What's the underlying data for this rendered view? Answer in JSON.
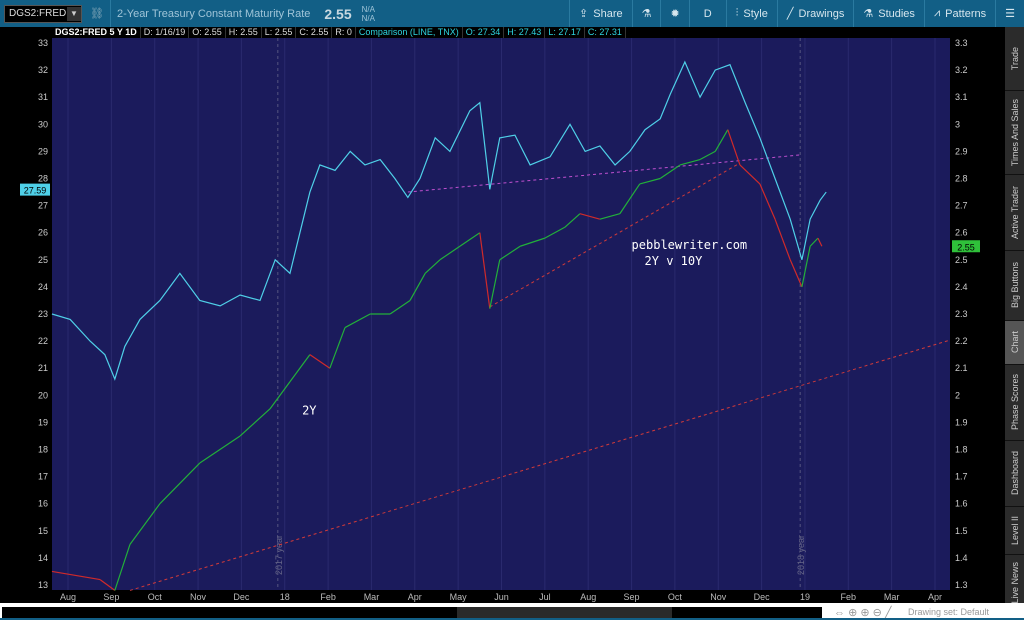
{
  "toolbar": {
    "symbol": "DGS2:FRED",
    "description": "2-Year Treasury Constant Maturity Rate",
    "last": "2.55",
    "na1": "N/A",
    "na2": "N/A",
    "share": "Share",
    "aggregation": "D",
    "style": "Style",
    "drawings": "Drawings",
    "studies": "Studies",
    "patterns": "Patterns"
  },
  "info": {
    "title": "DGS2:FRED 5 Y 1D",
    "date": "D: 1/16/19",
    "open": "O: 2.55",
    "high": "H: 2.55",
    "low": "L: 2.55",
    "close": "C: 2.55",
    "range": "R: 0",
    "comparison": "Comparison (LINE, TNX)",
    "c_open": "O: 27.34",
    "c_high": "H: 27.43",
    "c_low": "L: 27.17",
    "c_close": "C: 27.31"
  },
  "sidebar": [
    "Trade",
    "Times And Sales",
    "Active Trader",
    "Big Buttons",
    "Chart",
    "Phase Scores",
    "Dashboard",
    "Level II",
    "Live News"
  ],
  "bottom": {
    "drawing_set": "Drawing set: Default"
  },
  "chart_data": {
    "type": "line",
    "x_unit": "months since Aug 2017",
    "x_ticks": [
      "Aug",
      "Sep",
      "Oct",
      "Nov",
      "Dec",
      "18",
      "Feb",
      "Mar",
      "Apr",
      "May",
      "Jun",
      "Jul",
      "Aug",
      "Sep",
      "Oct",
      "Nov",
      "Dec",
      "19",
      "Feb",
      "Mar",
      "Apr"
    ],
    "left_axis": {
      "range": [
        13,
        33
      ],
      "ticks": [
        "13",
        "14",
        "15",
        "16",
        "17",
        "18",
        "19",
        "20",
        "21",
        "22",
        "23",
        "24",
        "25",
        "26",
        "27",
        "28",
        "29",
        "30",
        "31",
        "32",
        "33"
      ]
    },
    "right_axis": {
      "range": [
        1.3,
        3.3
      ],
      "ticks": [
        "1.3",
        "1.4",
        "1.5",
        "1.6",
        "1.7",
        "1.8",
        "1.9",
        "2",
        "2.1",
        "2.2",
        "2.3",
        "2.4",
        "2.5",
        "2.6",
        "2.7",
        "2.8",
        "2.9",
        "3",
        "3.1",
        "3.2",
        "3.3"
      ]
    },
    "left_badge": "27.59",
    "right_badge": "2.55",
    "series": [
      {
        "name": "TNX (comparison, left axis)",
        "color": "#4fd0e8",
        "axis": "left",
        "points": [
          [
            -0.37,
            23
          ],
          [
            0.05,
            22.8
          ],
          [
            0.51,
            22
          ],
          [
            0.85,
            21.5
          ],
          [
            1.08,
            20.6
          ],
          [
            1.31,
            21.8
          ],
          [
            1.66,
            22.8
          ],
          [
            2.12,
            23.5
          ],
          [
            2.58,
            24.5
          ],
          [
            3.04,
            23.5
          ],
          [
            3.51,
            23.3
          ],
          [
            3.97,
            23.7
          ],
          [
            4.43,
            23.5
          ],
          [
            4.78,
            25
          ],
          [
            5.12,
            24.5
          ],
          [
            5.35,
            26
          ],
          [
            5.58,
            27.5
          ],
          [
            5.81,
            28.5
          ],
          [
            6.16,
            28.3
          ],
          [
            6.51,
            29
          ],
          [
            6.85,
            28.5
          ],
          [
            7.2,
            28.7
          ],
          [
            7.54,
            28
          ],
          [
            7.84,
            27.3
          ],
          [
            8.12,
            28
          ],
          [
            8.47,
            29.5
          ],
          [
            8.81,
            29
          ],
          [
            9.27,
            30.5
          ],
          [
            9.5,
            30.8
          ],
          [
            9.73,
            27.6
          ],
          [
            9.96,
            29.5
          ],
          [
            10.31,
            29.6
          ],
          [
            10.66,
            28.5
          ],
          [
            11.12,
            28.8
          ],
          [
            11.58,
            30
          ],
          [
            11.93,
            29
          ],
          [
            12.27,
            29.2
          ],
          [
            12.62,
            28.5
          ],
          [
            12.96,
            29
          ],
          [
            13.31,
            29.8
          ],
          [
            13.66,
            30.2
          ],
          [
            13.89,
            31.1
          ],
          [
            14.23,
            32.3
          ],
          [
            14.58,
            31
          ],
          [
            14.93,
            32
          ],
          [
            15.27,
            32.2
          ],
          [
            15.62,
            30.8
          ],
          [
            15.96,
            29.5
          ],
          [
            16.31,
            28
          ],
          [
            16.66,
            26.5
          ],
          [
            16.93,
            25
          ],
          [
            17.12,
            26.5
          ],
          [
            17.35,
            27.2
          ],
          [
            17.49,
            27.5
          ]
        ]
      },
      {
        "name": "DGS2 2Y (right axis)",
        "up_color": "#22b03a",
        "down_color": "#d02a2a",
        "axis": "right",
        "points": [
          [
            -0.37,
            1.35
          ],
          [
            0.74,
            1.32
          ],
          [
            1.08,
            1.28
          ],
          [
            1.43,
            1.45
          ],
          [
            2.12,
            1.6
          ],
          [
            3.04,
            1.75
          ],
          [
            3.97,
            1.85
          ],
          [
            4.66,
            1.95
          ],
          [
            5.12,
            2.05
          ],
          [
            5.58,
            2.15
          ],
          [
            6.04,
            2.1
          ],
          [
            6.39,
            2.25
          ],
          [
            6.97,
            2.3
          ],
          [
            7.43,
            2.3
          ],
          [
            7.89,
            2.35
          ],
          [
            8.24,
            2.45
          ],
          [
            8.58,
            2.5
          ],
          [
            9.04,
            2.55
          ],
          [
            9.5,
            2.6
          ],
          [
            9.73,
            2.32
          ],
          [
            9.96,
            2.5
          ],
          [
            10.43,
            2.55
          ],
          [
            11.0,
            2.58
          ],
          [
            11.46,
            2.62
          ],
          [
            11.81,
            2.67
          ],
          [
            12.27,
            2.65
          ],
          [
            12.73,
            2.67
          ],
          [
            13.19,
            2.78
          ],
          [
            13.66,
            2.8
          ],
          [
            14.12,
            2.85
          ],
          [
            14.58,
            2.87
          ],
          [
            14.93,
            2.9
          ],
          [
            15.22,
            2.98
          ],
          [
            15.5,
            2.85
          ],
          [
            15.96,
            2.78
          ],
          [
            16.31,
            2.65
          ],
          [
            16.66,
            2.5
          ],
          [
            16.93,
            2.4
          ],
          [
            17.12,
            2.55
          ],
          [
            17.3,
            2.58
          ],
          [
            17.39,
            2.55
          ]
        ]
      }
    ],
    "trendlines": [
      {
        "color": "#c050d0",
        "from": [
          7.84,
          27.5
        ],
        "to": [
          16.89,
          28.87
        ]
      },
      {
        "color": "#d03a3a",
        "from": [
          9.73,
          23.26
        ],
        "to": [
          15.5,
          28.57
        ]
      },
      {
        "color": "#d03a3a",
        "from": [
          1.43,
          12.8
        ],
        "to": [
          20.35,
          22.04
        ]
      }
    ],
    "vlines": [
      {
        "x": 4.84,
        "label": "2017 year"
      },
      {
        "x": 16.89,
        "label": "2018 year"
      }
    ],
    "annotations": [
      {
        "text": "pebblewriter.com",
        "at": [
          13.0,
          25.4
        ]
      },
      {
        "text": "2Y v 10Y",
        "at": [
          13.3,
          24.8
        ]
      },
      {
        "text": "2Y",
        "at": [
          5.4,
          19.3
        ]
      }
    ]
  }
}
